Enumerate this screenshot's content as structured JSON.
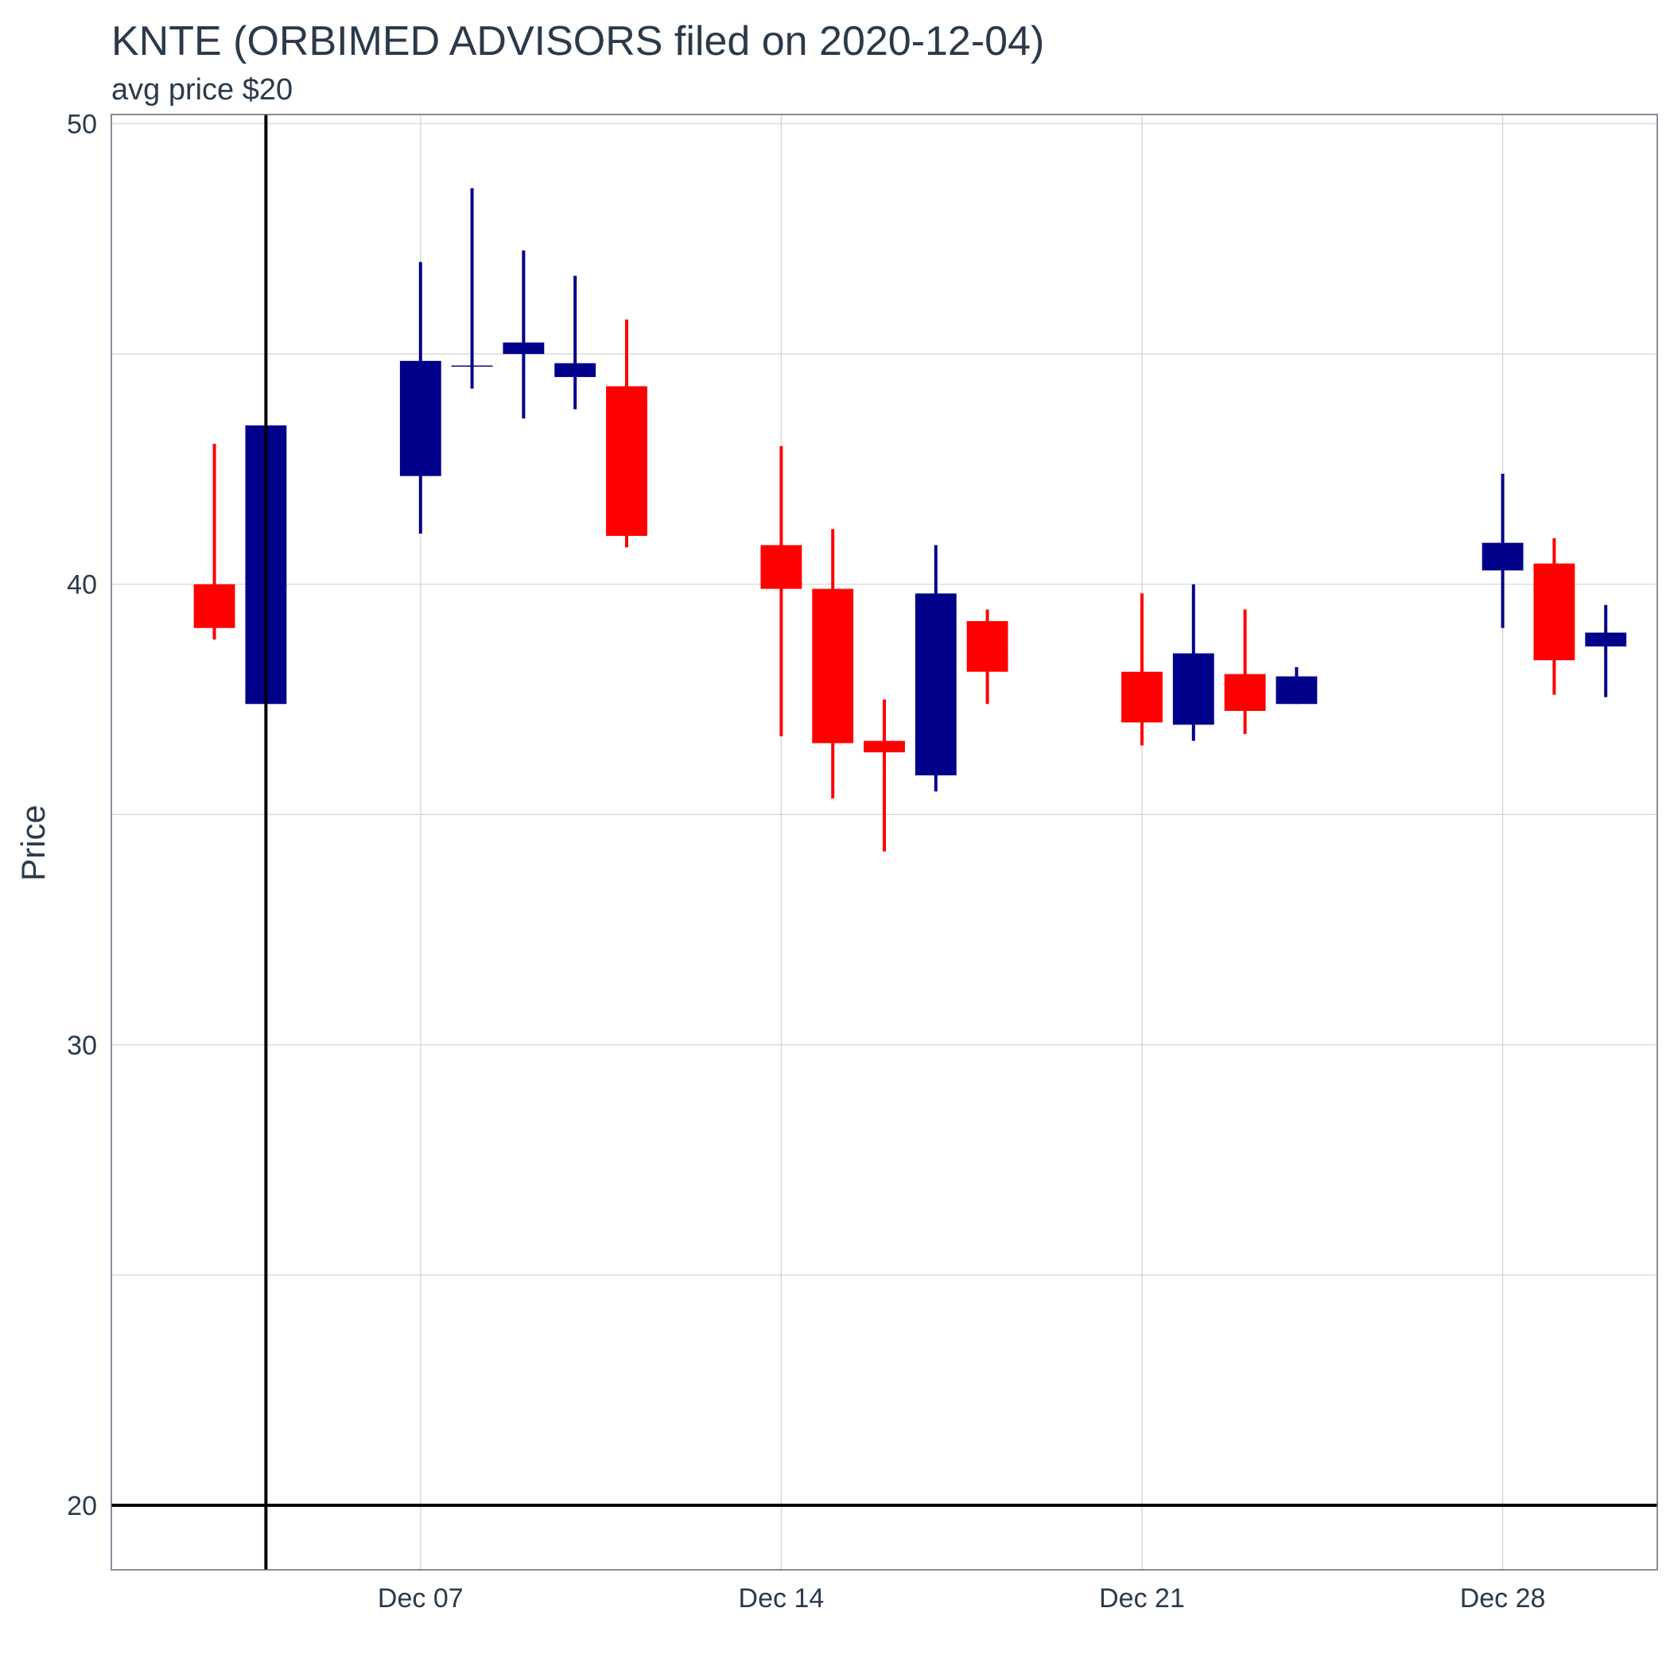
{
  "chart_data": {
    "type": "candlestick",
    "title": "KNTE (ORBIMED ADVISORS filed on 2020-12-04)",
    "subtitle": "avg price $20",
    "xlabel": "",
    "ylabel": "Price",
    "ylim": [
      18.6,
      50.2
    ],
    "xlim": [
      "2020-12-01",
      "2020-12-31"
    ],
    "y_ticks": [
      20,
      30,
      40,
      50
    ],
    "x_ticks": [
      {
        "date": "2020-12-07",
        "label": "Dec 07"
      },
      {
        "date": "2020-12-14",
        "label": "Dec 14"
      },
      {
        "date": "2020-12-21",
        "label": "Dec 21"
      },
      {
        "date": "2020-12-28",
        "label": "Dec 28"
      }
    ],
    "grid": true,
    "colors": {
      "up": "#00008b",
      "down": "#ff0000",
      "reference": "#000000",
      "grid": "#d3d3d3",
      "panel_border": "#2b3a4a"
    },
    "reference_lines": {
      "vertical_date": "2020-12-04",
      "horizontal_price": 20
    },
    "candles": [
      {
        "date": "2020-12-03",
        "open": 40.0,
        "high": 43.05,
        "low": 38.8,
        "close": 39.05
      },
      {
        "date": "2020-12-04",
        "open": 37.4,
        "high": 43.45,
        "low": 37.4,
        "close": 43.45
      },
      {
        "date": "2020-12-07",
        "open": 42.35,
        "high": 47.0,
        "low": 41.1,
        "close": 44.85
      },
      {
        "date": "2020-12-08",
        "open": 44.75,
        "high": 48.6,
        "low": 44.25,
        "close": 44.75
      },
      {
        "date": "2020-12-09",
        "open": 45.0,
        "high": 47.25,
        "low": 43.6,
        "close": 45.25
      },
      {
        "date": "2020-12-10",
        "open": 44.5,
        "high": 46.7,
        "low": 43.8,
        "close": 44.8
      },
      {
        "date": "2020-12-11",
        "open": 44.3,
        "high": 45.75,
        "low": 40.8,
        "close": 41.05
      },
      {
        "date": "2020-12-14",
        "open": 40.85,
        "high": 43.0,
        "low": 36.7,
        "close": 39.9
      },
      {
        "date": "2020-12-15",
        "open": 39.9,
        "high": 41.2,
        "low": 35.35,
        "close": 36.55
      },
      {
        "date": "2020-12-16",
        "open": 36.6,
        "high": 37.5,
        "low": 34.2,
        "close": 36.35
      },
      {
        "date": "2020-12-17",
        "open": 35.85,
        "high": 40.85,
        "low": 35.5,
        "close": 39.8
      },
      {
        "date": "2020-12-18",
        "open": 39.2,
        "high": 39.45,
        "low": 37.4,
        "close": 38.1
      },
      {
        "date": "2020-12-21",
        "open": 38.1,
        "high": 39.8,
        "low": 36.5,
        "close": 37.0
      },
      {
        "date": "2020-12-22",
        "open": 36.95,
        "high": 40.0,
        "low": 36.6,
        "close": 38.5
      },
      {
        "date": "2020-12-23",
        "open": 38.05,
        "high": 39.45,
        "low": 36.75,
        "close": 37.25
      },
      {
        "date": "2020-12-24",
        "open": 37.4,
        "high": 38.2,
        "low": 37.4,
        "close": 38.0
      },
      {
        "date": "2020-12-28",
        "open": 40.3,
        "high": 42.4,
        "low": 39.05,
        "close": 40.9
      },
      {
        "date": "2020-12-29",
        "open": 40.45,
        "high": 41.0,
        "low": 37.6,
        "close": 38.35
      },
      {
        "date": "2020-12-30",
        "open": 38.65,
        "high": 39.55,
        "low": 37.55,
        "close": 38.95
      }
    ]
  }
}
